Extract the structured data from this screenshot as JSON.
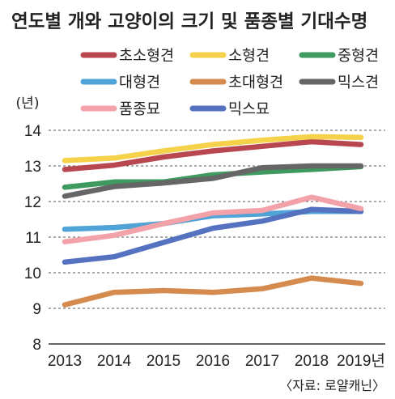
{
  "chart_data": {
    "type": "line",
    "title": "연도별 개와 고양이의 크기 및 품종별 기대수명",
    "ylabel": "(년)",
    "ylim": [
      8,
      14
    ],
    "yticks": [
      8,
      9,
      10,
      11,
      12,
      13,
      14
    ],
    "grid": true,
    "legend_position": "top",
    "categories": [
      "2013",
      "2014",
      "2015",
      "2016",
      "2017",
      "2018",
      "2019년"
    ],
    "source": "〈자료: 로얄캐닌〉",
    "series": [
      {
        "name": "초소형견",
        "color": "#b8474f",
        "values": [
          12.9,
          13.02,
          13.25,
          13.42,
          13.55,
          13.68,
          13.6
        ]
      },
      {
        "name": "소형견",
        "color": "#f5d24a",
        "values": [
          13.15,
          13.22,
          13.42,
          13.6,
          13.72,
          13.82,
          13.8
        ]
      },
      {
        "name": "중형견",
        "color": "#3f9a5f",
        "values": [
          12.4,
          12.55,
          12.55,
          12.75,
          12.83,
          12.9,
          12.98
        ]
      },
      {
        "name": "대형견",
        "color": "#4fa3d6",
        "values": [
          11.22,
          11.27,
          11.38,
          11.6,
          11.65,
          11.72,
          11.72
        ]
      },
      {
        "name": "초대형견",
        "color": "#d58a4e",
        "values": [
          9.1,
          9.45,
          9.5,
          9.45,
          9.55,
          9.85,
          9.7
        ]
      },
      {
        "name": "믹스견",
        "color": "#666666",
        "values": [
          12.15,
          12.42,
          12.52,
          12.65,
          12.95,
          13.0,
          13.0
        ]
      },
      {
        "name": "품종묘",
        "color": "#f2a2a8",
        "values": [
          10.87,
          11.05,
          11.38,
          11.68,
          11.75,
          12.12,
          11.8
        ]
      },
      {
        "name": "믹스묘",
        "color": "#5472c0",
        "values": [
          10.3,
          10.45,
          10.85,
          11.25,
          11.45,
          11.78,
          11.72
        ]
      }
    ]
  }
}
